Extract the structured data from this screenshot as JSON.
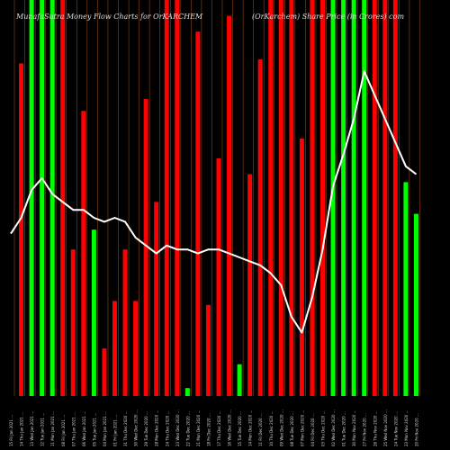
{
  "chart_data": {
    "type": "bar",
    "title_left": "MunafaSutra Money Flow Charts for OrKARCHEM",
    "title_right": "(OrKarchem) Share Price (in Crores) com",
    "background": "#000000",
    "colors": {
      "up": "#00ff00",
      "down": "#ff0000",
      "line": "#ffffff",
      "vline": "#8b4513"
    },
    "ylim": [
      0,
      100
    ],
    "categories": [
      "15 Fri Jan 2021 …",
      "14 Thu Jan 2021 …",
      "13 Wed Jan 2021 …",
      "12 Tue Jan 2021 …",
      "11 Mon Jan 2021 …",
      "08 Fri Jan 2021 …",
      "07 Thu Jan 2021 …",
      "06 Wed Jan 2021 …",
      "05 Tue Jan 2021 …",
      "04 Mon Jan 2021 …",
      "01 Fri Jan 2021 …",
      "31 Thu Dec 2020 …",
      "30 Wed Dec 2020 …",
      "29 Tue Dec 2020 …",
      "28 Mon Dec 2020 …",
      "24 Thu Dec 2020 …",
      "23 Wed Dec 2020 …",
      "22 Tue Dec 2020 …",
      "21 Mon Dec 2020 …",
      "18 Fri Dec 2020 …",
      "17 Thu Dec 2020 …",
      "16 Wed Dec 2020 …",
      "15 Tue Dec 2020 …",
      "14 Mon Dec 2020 …",
      "11 Fri Dec 2020 …",
      "10 Thu Dec 2020 …",
      "09 Wed Dec 2020 …",
      "08 Tue Dec 2020 …",
      "07 Mon Dec 2020 …",
      "04 Fri Dec 2020 …",
      "03 Thu Dec 2020 …",
      "02 Wed Dec 2020 …",
      "01 Tue Dec 2020 …",
      "30 Mon Nov 2020 …",
      "27 Fri Nov 2020 …",
      "26 Thu Nov 2020 …",
      "25 Wed Nov 2020 …",
      "24 Tue Nov 2020 …",
      "23 Mon Nov 2020 …",
      "20 Fri Nov 2020 …"
    ],
    "values": [
      0,
      84,
      100,
      100,
      100,
      100,
      37,
      72,
      42,
      12,
      24,
      37,
      24,
      75,
      49,
      100,
      100,
      2,
      92,
      23,
      60,
      96,
      8,
      56,
      85,
      100,
      100,
      100,
      65,
      100,
      100,
      100,
      100,
      100,
      100,
      100,
      100,
      100,
      54,
      46
    ],
    "directions": [
      "none",
      "down",
      "up",
      "up",
      "up",
      "down",
      "down",
      "down",
      "up",
      "down",
      "down",
      "down",
      "down",
      "down",
      "down",
      "down",
      "down",
      "up",
      "down",
      "down",
      "down",
      "down",
      "up",
      "down",
      "down",
      "down",
      "down",
      "down",
      "down",
      "down",
      "down",
      "up",
      "up",
      "up",
      "up",
      "down",
      "down",
      "down",
      "up",
      "up"
    ],
    "line": [
      41,
      45,
      52,
      55,
      51,
      49,
      47,
      47,
      45,
      44,
      45,
      44,
      40,
      38,
      36,
      38,
      37,
      37,
      36,
      37,
      37,
      36,
      35,
      34,
      33,
      31,
      28,
      20,
      16,
      25,
      37,
      53,
      61,
      70,
      82,
      76,
      70,
      64,
      58,
      56
    ]
  }
}
